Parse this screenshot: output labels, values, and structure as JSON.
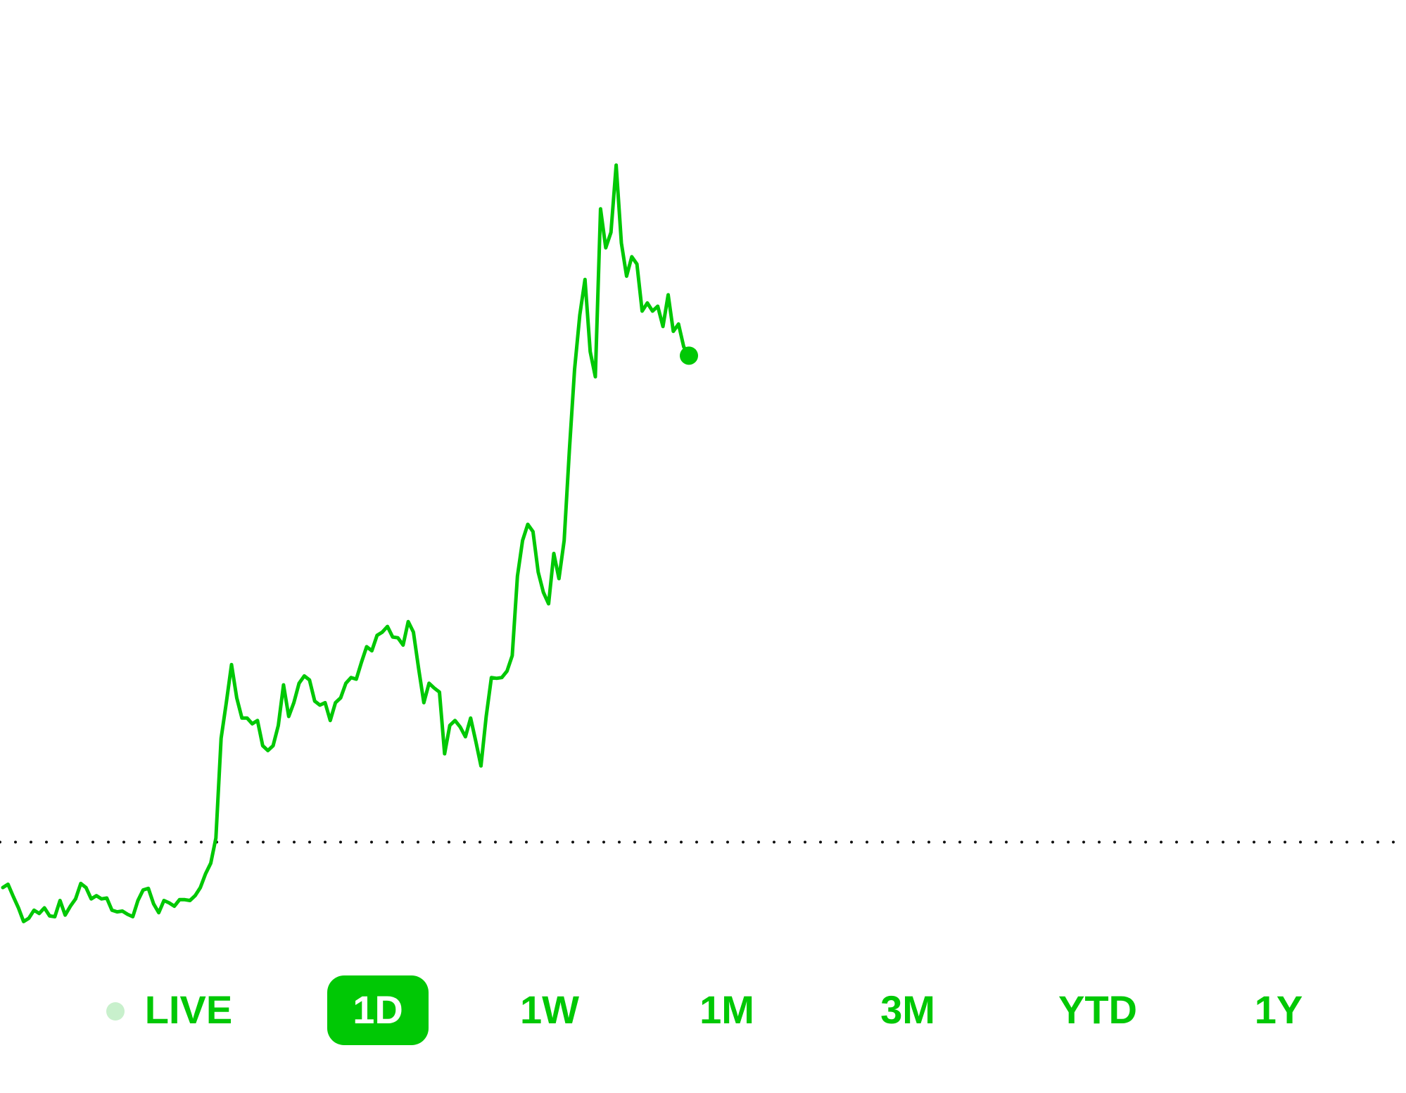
{
  "chart_data": {
    "type": "line",
    "color": "#00c805",
    "values": [
      7.2,
      7.6,
      6.1,
      4.7,
      3.0,
      3.4,
      4.4,
      4.0,
      4.7,
      3.7,
      3.6,
      5.6,
      3.8,
      4.9,
      5.8,
      7.7,
      7.2,
      5.8,
      6.2,
      5.8,
      5.9,
      4.4,
      4.2,
      4.3,
      3.9,
      3.6,
      5.6,
      6.9,
      7.1,
      5.2,
      4.1,
      5.6,
      5.3,
      4.9,
      5.7,
      5.7,
      5.6,
      6.2,
      7.2,
      8.9,
      10.2,
      13.3,
      25.6,
      30.0,
      34.7,
      30.6,
      28.1,
      28.1,
      27.4,
      27.8,
      24.7,
      24.1,
      24.7,
      27.2,
      32.2,
      28.3,
      30.0,
      32.4,
      33.3,
      32.8,
      30.2,
      29.7,
      30.0,
      27.8,
      30.0,
      30.6,
      32.4,
      33.1,
      32.9,
      35.0,
      36.9,
      36.4,
      38.3,
      38.7,
      39.4,
      38.1,
      38.0,
      37.1,
      40.0,
      38.7,
      34.2,
      30.0,
      32.4,
      31.8,
      31.3,
      23.7,
      27.2,
      27.8,
      27.0,
      25.8,
      28.1,
      25.2,
      22.2,
      28.3,
      33.1,
      33.0,
      33.1,
      33.9,
      35.8,
      45.6,
      50.0,
      52.0,
      51.1,
      46.1,
      43.6,
      42.2,
      48.4,
      45.3,
      50.0,
      61.1,
      71.1,
      77.8,
      82.2,
      73.3,
      70.2,
      90.9,
      86.1,
      88.0,
      96.3,
      86.7,
      82.6,
      85.0,
      84.1,
      78.3,
      79.3,
      78.3,
      78.9,
      76.4,
      80.3,
      75.8,
      76.7,
      73.9,
      72.8
    ],
    "reference_line": 12.8,
    "ylim": [
      0,
      100
    ]
  },
  "range_buttons": [
    "LIVE",
    "1D",
    "1W",
    "1M",
    "3M",
    "YTD",
    "1Y"
  ]
}
